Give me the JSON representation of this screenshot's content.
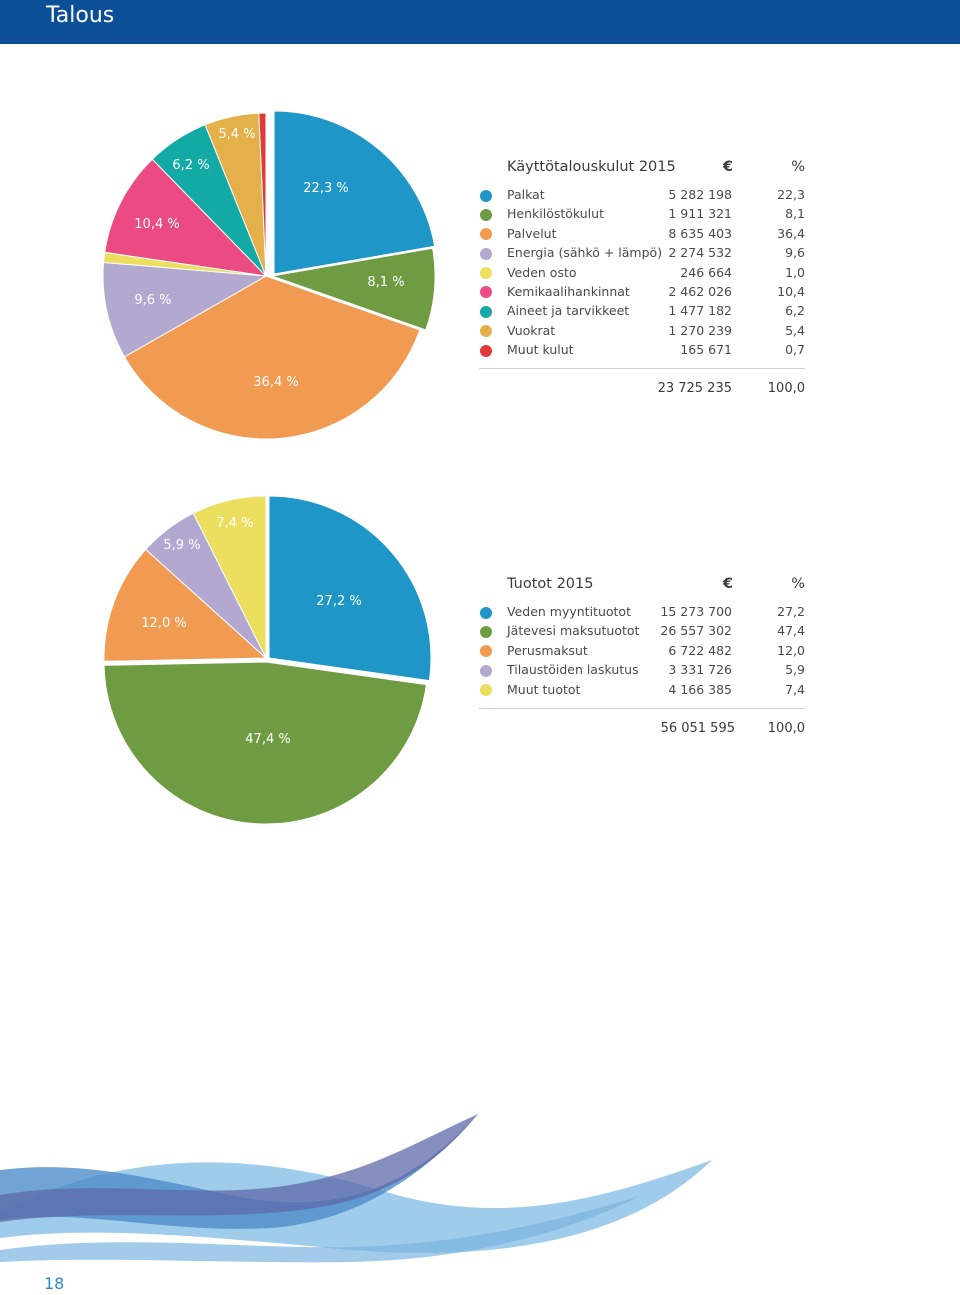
{
  "header": {
    "title": "Talous"
  },
  "page_number": "18",
  "chart_data": [
    {
      "type": "pie",
      "title": "Käyttötalouskulut 2015",
      "currency_header": "€",
      "percent_header": "%",
      "slices": [
        {
          "label": "Palkat",
          "value": "5 282 198",
          "percent": 22.3,
          "percent_text": "22,3",
          "slice_label": "22,3 %",
          "color": "#1e96c8"
        },
        {
          "label": "Henkilöstökulut",
          "value": "1 911 321",
          "percent": 8.1,
          "percent_text": "8,1",
          "slice_label": "8,1 %",
          "color": "#6f9c43"
        },
        {
          "label": "Palvelut",
          "value": "8 635 403",
          "percent": 36.4,
          "percent_text": "36,4",
          "slice_label": "36,4 %",
          "color": "#f19a51"
        },
        {
          "label": "Energia (sähkö + lämpö)",
          "value": "2 274 532",
          "percent": 9.6,
          "percent_text": "9,6",
          "slice_label": "9,6 %",
          "color": "#b3a8d0"
        },
        {
          "label": "Veden osto",
          "value": "246 664",
          "percent": 1.0,
          "percent_text": "1,0",
          "slice_label": "",
          "color": "#ecdf5e"
        },
        {
          "label": "Kemikaalihankinnat",
          "value": "2 462 026",
          "percent": 10.4,
          "percent_text": "10,4",
          "slice_label": "10,4 %",
          "color": "#ec4a83"
        },
        {
          "label": "Aineet ja tarvikkeet",
          "value": "1 477 182",
          "percent": 6.2,
          "percent_text": "6,2",
          "slice_label": "6,2 %",
          "color": "#13aaa6"
        },
        {
          "label": "Vuokrat",
          "value": "1 270 239",
          "percent": 5.4,
          "percent_text": "5,4",
          "slice_label": "5,4 %",
          "color": "#e4b04a"
        },
        {
          "label": "Muut kulut",
          "value": "165 671",
          "percent": 0.7,
          "percent_text": "0,7",
          "slice_label": "",
          "color": "#e23a3a"
        }
      ],
      "total_value": "23 725 235",
      "total_percent": "100,0"
    },
    {
      "type": "pie",
      "title": "Tuotot 2015",
      "currency_header": "€",
      "percent_header": "%",
      "slices": [
        {
          "label": "Veden myyntituotot",
          "value": "15 273 700",
          "percent": 27.2,
          "percent_text": "27,2",
          "slice_label": "27,2 %",
          "color": "#1e96c8"
        },
        {
          "label": "Jätevesi maksutuotot",
          "value": "26 557 302",
          "percent": 47.4,
          "percent_text": "47,4",
          "slice_label": "47,4 %",
          "color": "#6f9c43"
        },
        {
          "label": "Perusmaksut",
          "value": "6 722 482",
          "percent": 12.0,
          "percent_text": "12,0",
          "slice_label": "12,0 %",
          "color": "#f19a51"
        },
        {
          "label": "Tilaustöiden laskutus",
          "value": "3 331 726",
          "percent": 5.9,
          "percent_text": "5,9",
          "slice_label": "5,9 %",
          "color": "#b3a8d0"
        },
        {
          "label": "Muut tuotot",
          "value": "4 166 385",
          "percent": 7.4,
          "percent_text": "7,4",
          "slice_label": "7,4 %",
          "color": "#ecdf5e"
        }
      ],
      "total_value": "56 051 595",
      "total_percent": "100,0"
    }
  ]
}
